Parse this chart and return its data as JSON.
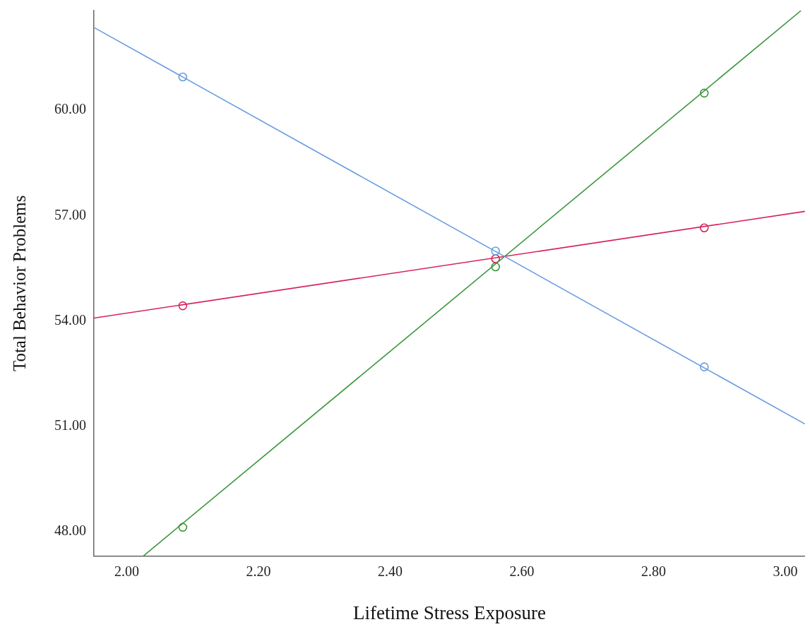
{
  "chart_data": {
    "type": "line",
    "xlabel": "Lifetime Stress Exposure",
    "ylabel": "Total Behavior Problems",
    "xlim": [
      1.95,
      3.03
    ],
    "xticks": [
      {
        "value": 2,
        "label": "2.00"
      },
      {
        "value": 2.2,
        "label": "2.20"
      },
      {
        "value": 2.4,
        "label": "2.40"
      },
      {
        "value": 2.6,
        "label": "2.60"
      },
      {
        "value": 2.8,
        "label": "2.80"
      },
      {
        "value": 3,
        "label": "3.00"
      }
    ],
    "ylim": [
      47.3,
      62.84
    ],
    "yticks": [
      {
        "value": 48,
        "label": "48.00"
      },
      {
        "value": 51,
        "label": "51.00"
      },
      {
        "value": 54,
        "label": "54.00"
      },
      {
        "value": 57,
        "label": "57.00"
      },
      {
        "value": 60,
        "label": "60.00"
      }
    ],
    "grid": false,
    "legend": false,
    "marker": "circle",
    "line_style": "solid",
    "series": [
      {
        "marker": "none",
        "color": "#6a9ee0",
        "x": [
          1.95,
          3.03
        ],
        "values": [
          62.36,
          51.06
        ]
      },
      {
        "marker": "none",
        "color": "#d6245a",
        "x": [
          1.95,
          3.03
        ],
        "values": [
          54.08,
          57.12
        ]
      },
      {
        "marker": "none",
        "color": "#3c963c",
        "x": [
          2.025,
          3.024
        ],
        "values": [
          47.3,
          62.84
        ]
      },
      {
        "type": "scatter",
        "color": "#6a9ee0",
        "x": [
          2.085,
          2.56,
          2.877
        ],
        "values": [
          60.95,
          55.99,
          52.69
        ]
      },
      {
        "type": "scatter",
        "color": "#d6245a",
        "x": [
          2.085,
          2.56,
          2.877
        ],
        "values": [
          54.43,
          55.77,
          56.65
        ]
      },
      {
        "type": "scatter",
        "color": "#3c963c",
        "x": [
          2.085,
          2.56,
          2.877
        ],
        "values": [
          48.12,
          55.54,
          60.49
        ]
      }
    ]
  }
}
